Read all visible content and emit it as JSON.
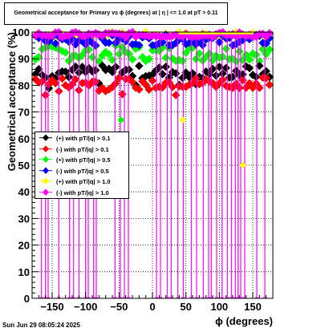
{
  "title": "Geometrical acceptance for Primary vs ϕ (degrees) at |  η  | <= 1.0 at pT > 0.11",
  "timestamp": "Sun Jun 29 08:05:24 2025",
  "chart_data": {
    "type": "scatter",
    "xlabel": "ϕ (degrees)",
    "ylabel": "Geometrical acceptance (%)",
    "xlim": [
      -180,
      180
    ],
    "ylim": [
      0,
      100
    ],
    "x_ticks": [
      -150,
      -100,
      -50,
      0,
      50,
      100,
      150
    ],
    "y_ticks": [
      0,
      10,
      20,
      30,
      40,
      50,
      60,
      70,
      80,
      90,
      100
    ],
    "grid": true,
    "legend_position": "middle-left",
    "series": [
      {
        "name": "(+) with pT/|q| > 0.1",
        "color": "#000000",
        "baseline": 85,
        "spread": 2.5
      },
      {
        "name": "(-) with pT/|q| > 0.1",
        "color": "#ff0000",
        "baseline": 81,
        "spread": 2.0
      },
      {
        "name": "(+) with pT/|q| > 0.5",
        "color": "#00ff00",
        "baseline": 92,
        "spread": 3.0
      },
      {
        "name": "(-) with pT/|q| > 0.5",
        "color": "#0000ff",
        "baseline": 97,
        "spread": 2.0
      },
      {
        "name": "(+) with pT/|q| > 1.0",
        "color": "#ffff00",
        "baseline": 99,
        "spread": 1.0
      },
      {
        "name": "(-) with pT/|q| > 1.0",
        "color": "#ff00ff",
        "baseline": 99,
        "spread": 1.0
      }
    ],
    "magenta_drop_x": [
      -166,
      -160,
      -156,
      -140,
      -124,
      -118,
      -110,
      -100,
      -96,
      -88,
      -84,
      -56,
      -48,
      -42,
      -36,
      6,
      12,
      22,
      28,
      38,
      46,
      58,
      66,
      76,
      84,
      88,
      96,
      104,
      112,
      118,
      124,
      128,
      132,
      138,
      156,
      168
    ],
    "outliers": [
      {
        "series": 2,
        "x": -47,
        "y": 67
      },
      {
        "series": 4,
        "x": 45,
        "y": 67
      },
      {
        "series": 4,
        "x": 135,
        "y": 50
      }
    ]
  }
}
